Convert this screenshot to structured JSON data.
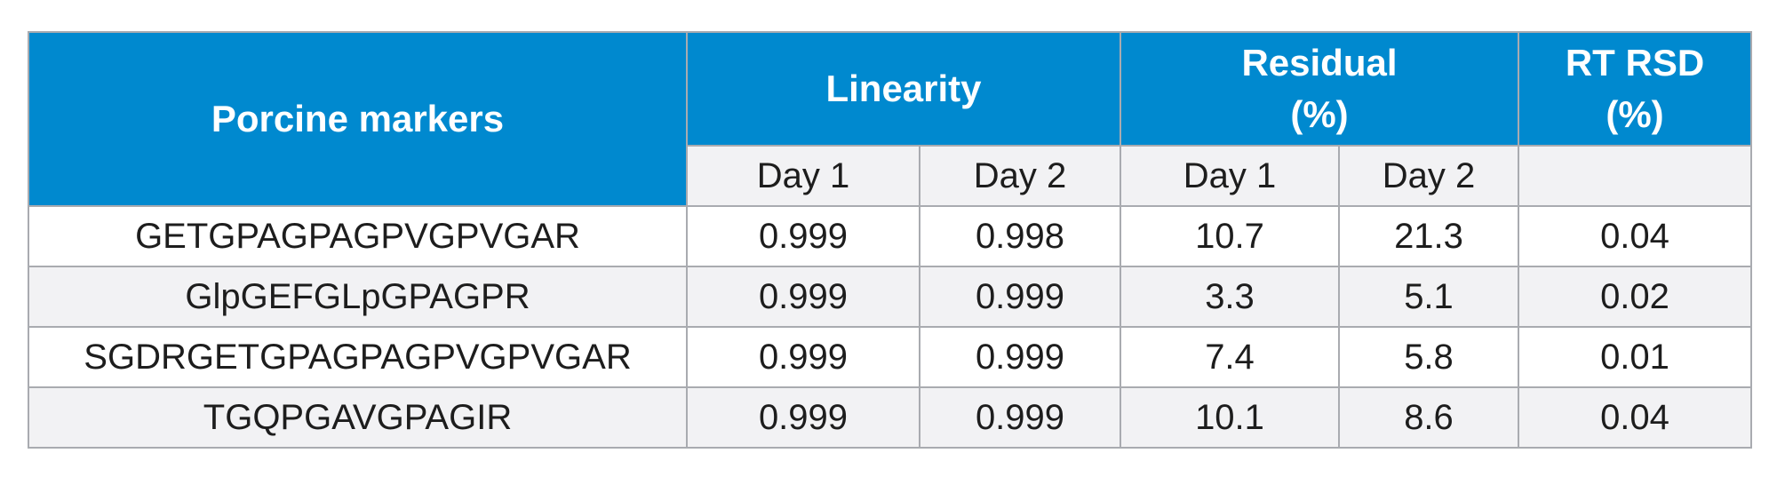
{
  "table": {
    "header": {
      "marker": "Porcine markers",
      "linearity": "Linearity",
      "residual_line1": "Residual",
      "residual_line2": "(%)",
      "rtrsd_line1": "RT RSD",
      "rtrsd_line2": "(%)"
    },
    "subheader": {
      "lin_day1": "Day 1",
      "lin_day2": "Day 2",
      "res_day1": "Day 1",
      "res_day2": "Day 2"
    },
    "rows": [
      {
        "marker": "GETGPAGPAGPVGPVGAR",
        "lin_day1": "0.999",
        "lin_day2": "0.998",
        "res_day1": "10.7",
        "res_day2": "21.3",
        "rt_rsd": "0.04"
      },
      {
        "marker": "GlpGEFGLpGPAGPR",
        "lin_day1": "0.999",
        "lin_day2": "0.999",
        "res_day1": "3.3",
        "res_day2": "5.1",
        "rt_rsd": "0.02"
      },
      {
        "marker": "SGDRGETGPAGPAGPVGPVGAR",
        "lin_day1": "0.999",
        "lin_day2": "0.999",
        "res_day1": "7.4",
        "res_day2": "5.8",
        "rt_rsd": "0.01"
      },
      {
        "marker": "TGQPGAVGPAGIR",
        "lin_day1": "0.999",
        "lin_day2": "0.999",
        "res_day1": "10.1",
        "res_day2": "8.6",
        "rt_rsd": "0.04"
      }
    ]
  },
  "colors": {
    "header_bg": "#0089cf",
    "header_text": "#ffffff",
    "alt_row_bg": "#f2f2f4",
    "border": "#a9abb0"
  },
  "chart_data": {
    "type": "table",
    "columns": [
      "Porcine markers",
      "Linearity Day 1",
      "Linearity Day 2",
      "Residual (%) Day 1",
      "Residual (%) Day 2",
      "RT RSD (%)"
    ],
    "rows": [
      [
        "GETGPAGPAGPVGPVGAR",
        0.999,
        0.998,
        10.7,
        21.3,
        0.04
      ],
      [
        "GlpGEFGLpGPAGPR",
        0.999,
        0.999,
        3.3,
        5.1,
        0.02
      ],
      [
        "SGDRGETGPAGPAGPVGPVGAR",
        0.999,
        0.999,
        7.4,
        5.8,
        0.01
      ],
      [
        "TGQPGAVGPAGIR",
        0.999,
        0.999,
        10.1,
        8.6,
        0.04
      ]
    ]
  }
}
